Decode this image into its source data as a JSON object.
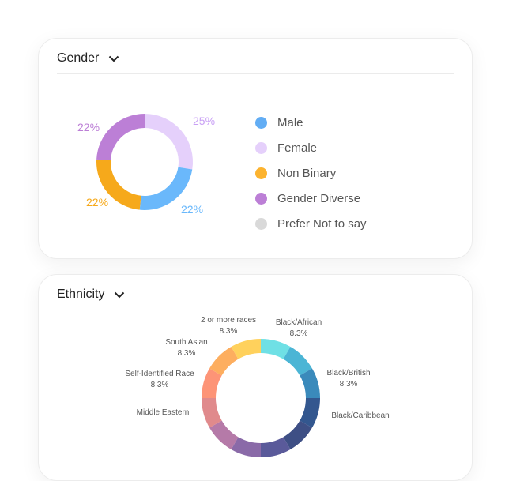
{
  "gender": {
    "title": "Gender",
    "slices": [
      {
        "label": "Female",
        "value": 25,
        "pct_label": "25%",
        "color": "#e5d0fb"
      },
      {
        "label": "Male",
        "value": 22,
        "pct_label": "22%",
        "color": "#6ab8fb"
      },
      {
        "label": "Non Binary",
        "value": 22,
        "pct_label": "22%",
        "color": "#f6a91b"
      },
      {
        "label": "Gender Diverse",
        "value": 22,
        "pct_label": "22%",
        "color": "#bc7fd6"
      }
    ],
    "legend": [
      {
        "label": "Male",
        "color": "#62adf4"
      },
      {
        "label": "Female",
        "color": "#e5d0fb"
      },
      {
        "label": "Non Binary",
        "color": "#fcb32f"
      },
      {
        "label": "Gender Diverse",
        "color": "#bc7fd6"
      },
      {
        "label": "Prefer Not to say",
        "color": "#d9d9d9"
      }
    ]
  },
  "ethnicity": {
    "title": "Ethnicity",
    "segments": [
      {
        "label": "Black/African",
        "pct_label": "8.3%",
        "value": 8.3,
        "color": "#6fe0e5"
      },
      {
        "label": "Black/British",
        "pct_label": "8.3%",
        "value": 8.3,
        "color": "#4bb5d5"
      },
      {
        "label": null,
        "pct_label": null,
        "value": 8.3,
        "color": "#3a8abb"
      },
      {
        "label": "Black/Caribbean",
        "pct_label": null,
        "value": 8.3,
        "color": "#33578f"
      },
      {
        "label": null,
        "value": 8.3,
        "color": "#3e4f85"
      },
      {
        "label": null,
        "value": 8.3,
        "color": "#5a5a9a"
      },
      {
        "label": null,
        "value": 8.3,
        "color": "#8a6aa8"
      },
      {
        "label": null,
        "value": 8.3,
        "color": "#b57aa8"
      },
      {
        "label": "Middle Eastern",
        "pct_label": null,
        "value": 8.3,
        "color": "#e08a8c"
      },
      {
        "label": "Self-Identified Race",
        "pct_label": "8.3%",
        "value": 8.3,
        "color": "#fd9477"
      },
      {
        "label": "South Asian",
        "pct_label": "8.3%",
        "value": 8.3,
        "color": "#fdae5f"
      },
      {
        "label": "2 or more races",
        "pct_label": "8.3%",
        "value": 8.3,
        "color": "#ffd15c"
      }
    ]
  }
}
